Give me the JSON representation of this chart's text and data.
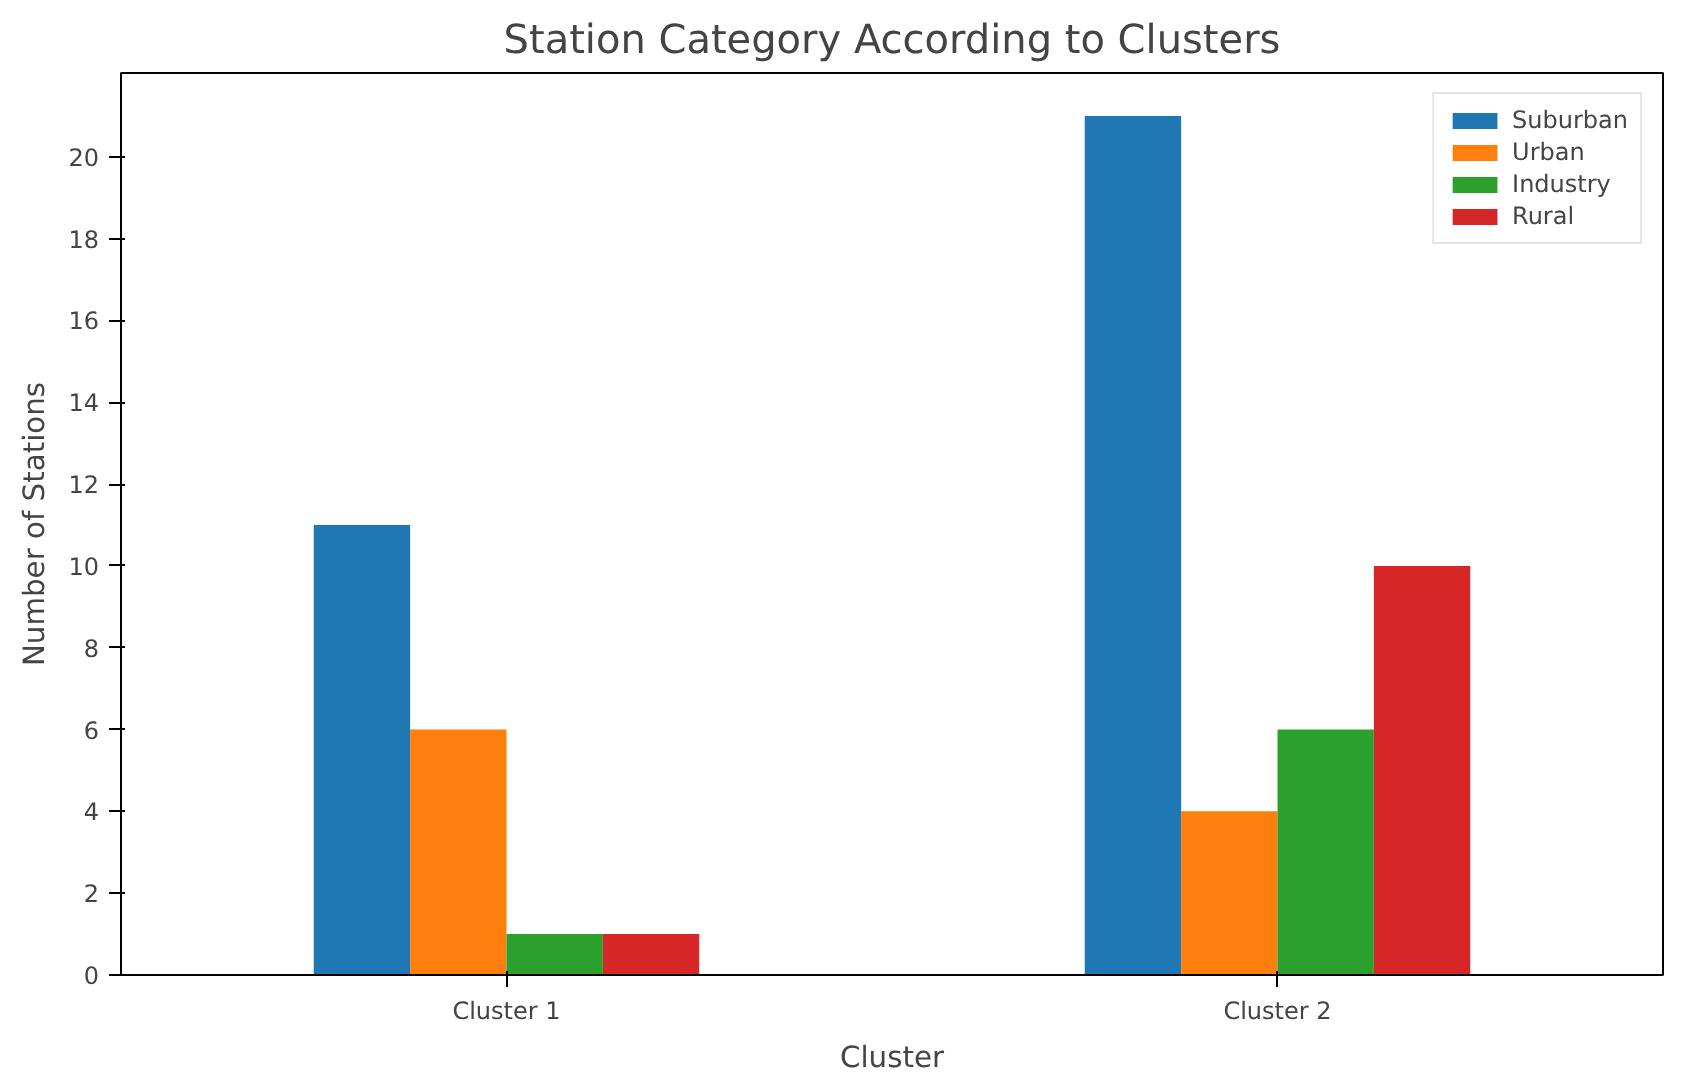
{
  "chart_data": {
    "type": "bar",
    "title": "Station Category According to Clusters",
    "xlabel": "Cluster",
    "ylabel": "Number of Stations",
    "categories": [
      "Cluster 1",
      "Cluster 2"
    ],
    "series": [
      {
        "name": "Suburban",
        "color": "#1f77b4",
        "values": [
          11,
          21
        ]
      },
      {
        "name": "Urban",
        "color": "#ff7f0e",
        "values": [
          6,
          4
        ]
      },
      {
        "name": "Industry",
        "color": "#2ca02c",
        "values": [
          1,
          6
        ]
      },
      {
        "name": "Rural",
        "color": "#d62728",
        "values": [
          1,
          10
        ]
      }
    ],
    "ylim": [
      0,
      22.05
    ],
    "yticks": [
      0,
      2,
      4,
      6,
      8,
      10,
      12,
      14,
      16,
      18,
      20
    ],
    "grid": false,
    "legend": "top right"
  }
}
